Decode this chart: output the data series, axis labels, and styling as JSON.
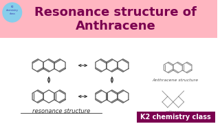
{
  "title_line1": "Resonance structure of",
  "title_line2": "Anthracene",
  "title_color": "#7B0050",
  "title_bg_color": "#FFB6C1",
  "main_bg_color": "#FFFFFF",
  "resonance_label": "resonance structure",
  "anthracene_structure_label": "Anthracene structure",
  "k2_label": "K2 chemistry class",
  "k2_bg_color": "#7B0050",
  "k2_text_color": "#FFFFFF"
}
